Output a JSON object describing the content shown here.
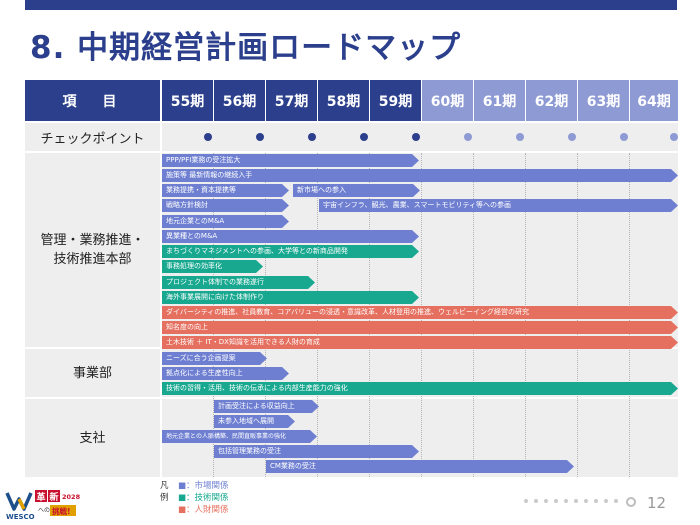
{
  "title": "8.  中期経営計画ロードマップ",
  "header": {
    "item_label": "項　目",
    "periods": [
      "55期",
      "56期",
      "57期",
      "58期",
      "59期",
      "60期",
      "61期",
      "62期",
      "63期",
      "64期"
    ]
  },
  "checkpoint": {
    "label": "チェックポイント"
  },
  "sections": {
    "management": {
      "label": "管理・業務推進・\n技術推進本部"
    },
    "business": {
      "label": "事業部"
    },
    "branch": {
      "label": "支社"
    }
  },
  "bars": {
    "b1": "PPP/PFI業務の受注拡大",
    "b2": "施策等 最新情報の継続入手",
    "b3": "業務提携・資本提携等",
    "b4": "新市場への参入",
    "b5": "戦略方針検討",
    "b6": "宇宙インフラ、観光、農業、スマートモビリティ等への参画",
    "b7": "地元企業とのM&A",
    "b8": "異業種とのM&A",
    "b9": "まちづくりマネジメントへの参画、大学等との新商品開発",
    "b10": "事務処理の効率化",
    "b11": "プロジェクト体制での業務遂行",
    "b12": "海外事業展開に向けた体制作り",
    "b13": "ダイバーシティの推進、社員教育、コアバリューの浸透・意識改革、人材登用の推進、ウェルビーイング経営の研究",
    "b14": "知名度の向上",
    "b15": "土木技術 ＋ IT・DX知識を活用できる人財の育成",
    "b16": "ニーズに合う企画提案",
    "b17": "拠点化による生産性向上",
    "b18": "技術の習得・活用、技術の伝承による内部生産能力の強化",
    "b19": "計画受注による収益向上",
    "b20": "未参入地域へ展開",
    "b21": "地元企業との人脈構築、民間直販事業の強化",
    "b22": "包括管理業務の受注",
    "b23": "CM業務の受注"
  },
  "legend": {
    "title": "凡例",
    "items": [
      {
        "label": "■：市場関係",
        "color": "#6e7fd1"
      },
      {
        "label": "■：技術関係",
        "color": "#17a88f"
      },
      {
        "label": "■：人財関係",
        "color": "#e5705f"
      }
    ]
  },
  "logo": {
    "brand": "WESCO",
    "word1": "革",
    "word2": "新",
    "year": "2028",
    "sub1": "への",
    "sub2": "挑戦!"
  },
  "page_number": "12",
  "colors": {
    "primary": "#2b3f8c",
    "future": "#8e9ad3",
    "market": "#6e7fd1",
    "tech": "#17a88f",
    "hr": "#e5705f"
  }
}
